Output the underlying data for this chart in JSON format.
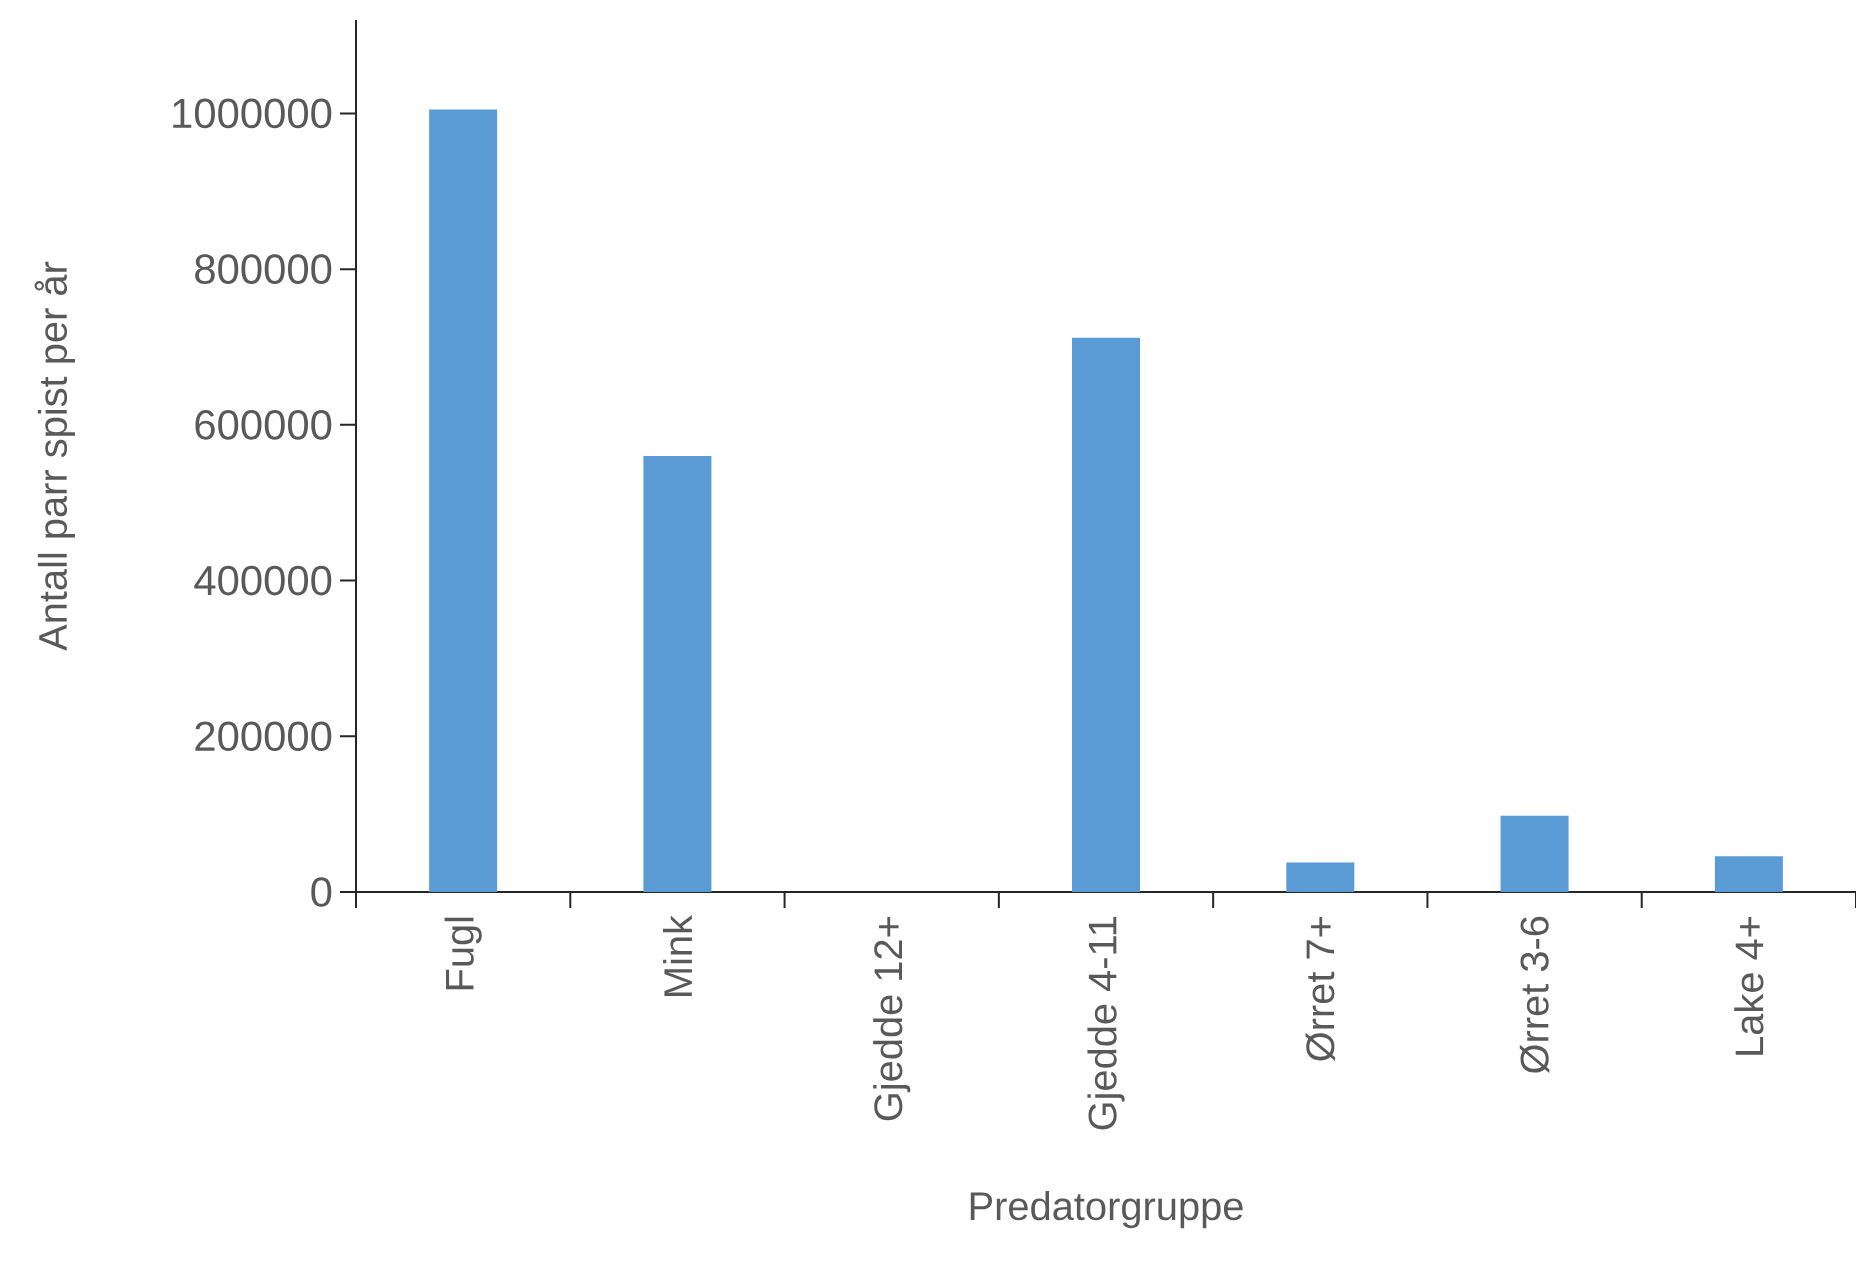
{
  "chart_data": {
    "type": "bar",
    "xlabel": "Predatorgruppe",
    "ylabel": "Antall parr spist per år",
    "categories": [
      "Fugl",
      "Mink",
      "Gjedde 12+",
      "Gjedde 4-11",
      "Ørret 7+",
      "Ørret 3-6",
      "Lake 4+"
    ],
    "values": [
      1005000,
      560000,
      0,
      712000,
      38000,
      98000,
      46000
    ],
    "color": "#5b9bd5",
    "ylim": [
      0,
      1120000
    ],
    "yticks": [
      0,
      200000,
      400000,
      600000,
      800000,
      1000000
    ]
  }
}
